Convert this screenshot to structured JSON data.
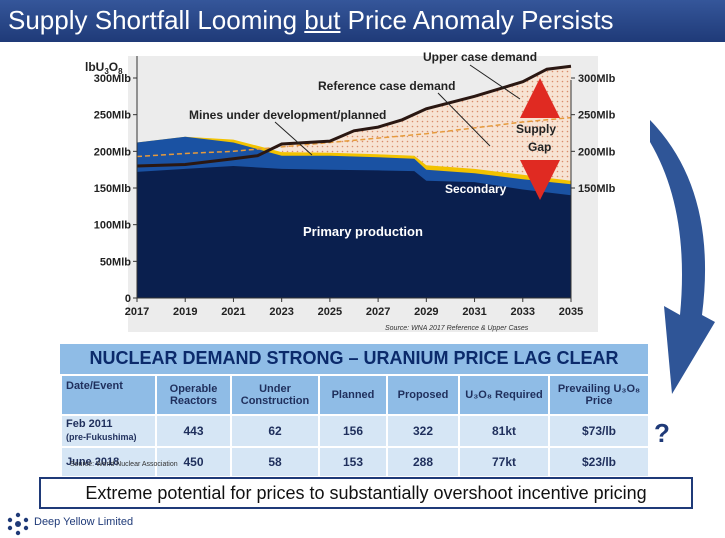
{
  "title": {
    "before": "Supply Shortfall Looming ",
    "underlined": "but",
    "after": " Price Anomaly Persists"
  },
  "chart_data": {
    "type": "area",
    "ylabel_parts": [
      "lbU",
      "3",
      "O",
      "8"
    ],
    "x": [
      2017,
      2019,
      2021,
      2023,
      2025,
      2027,
      2029,
      2031,
      2033,
      2035
    ],
    "x_ticks": [
      "2017",
      "2019",
      "2021",
      "2023",
      "2025",
      "2027",
      "2029",
      "2031",
      "2033",
      "2035"
    ],
    "xlim": [
      2017,
      2035
    ],
    "ylim": [
      0,
      330
    ],
    "y_ticks": [
      0,
      50,
      100,
      150,
      200,
      250,
      300
    ],
    "y_tick_labels": [
      "0",
      "50Mlb",
      "100Mlb",
      "150Mlb",
      "200Mlb",
      "250Mlb",
      "300Mlb"
    ],
    "y_tick_labels_right": [
      "150Mlb",
      "200Mlb",
      "250Mlb",
      "300Mlb"
    ],
    "y_ticks_right": [
      150,
      200,
      250,
      300
    ],
    "series": [
      {
        "name": "Primary production",
        "points": [
          [
            2017,
            172
          ],
          [
            2019,
            176
          ],
          [
            2021,
            180
          ],
          [
            2023,
            176
          ],
          [
            2025,
            175
          ],
          [
            2027,
            174
          ],
          [
            2028.5,
            173
          ],
          [
            2029,
            160
          ],
          [
            2031,
            158
          ],
          [
            2033,
            148
          ],
          [
            2035,
            140
          ]
        ],
        "color": "#0a1f4e"
      },
      {
        "name": "Mines under development/planned",
        "points": [
          [
            2017,
            212
          ],
          [
            2019,
            220
          ],
          [
            2021,
            212
          ],
          [
            2023,
            194
          ],
          [
            2025,
            194
          ],
          [
            2027,
            192
          ],
          [
            2028.5,
            190
          ],
          [
            2029,
            175
          ],
          [
            2031,
            170
          ],
          [
            2033,
            162
          ],
          [
            2035,
            155
          ]
        ],
        "color": "#1a52a3"
      },
      {
        "name": "Secondary",
        "points": [
          [
            2017,
            212
          ],
          [
            2019,
            220
          ],
          [
            2021,
            216
          ],
          [
            2023,
            199
          ],
          [
            2025,
            198
          ],
          [
            2027,
            196
          ],
          [
            2028.5,
            194
          ],
          [
            2029,
            181
          ],
          [
            2031,
            176
          ],
          [
            2033,
            168
          ],
          [
            2035,
            160
          ]
        ],
        "color": "#f2c200"
      },
      {
        "name": "Reference case demand",
        "points": [
          [
            2017,
            193
          ],
          [
            2019,
            197
          ],
          [
            2021,
            200
          ],
          [
            2023,
            206
          ],
          [
            2025,
            212
          ],
          [
            2027,
            218
          ],
          [
            2029,
            224
          ],
          [
            2031,
            232
          ],
          [
            2033,
            240
          ],
          [
            2035,
            246
          ]
        ],
        "color": "#e69a3c"
      },
      {
        "name": "Upper case demand",
        "points": [
          [
            2017,
            180
          ],
          [
            2019,
            182
          ],
          [
            2021,
            190
          ],
          [
            2022,
            194
          ],
          [
            2023,
            210
          ],
          [
            2025,
            214
          ],
          [
            2026,
            228
          ],
          [
            2027,
            233
          ],
          [
            2028,
            243
          ],
          [
            2029,
            258
          ],
          [
            2031,
            275
          ],
          [
            2033,
            295
          ],
          [
            2034,
            312
          ],
          [
            2035,
            316
          ]
        ],
        "color": "#2a1712"
      }
    ],
    "annotations": [
      "Upper case demand",
      "Reference case demand",
      "Mines under development/planned",
      "Primary production",
      "Secondary",
      "Supply",
      "Gap"
    ],
    "source": "Source: WNA 2017 Reference & Upper Cases"
  },
  "table": {
    "heading": "NUCLEAR DEMAND STRONG – URANIUM PRICE LAG CLEAR",
    "columns": [
      "Date/Event",
      "Operable Reactors",
      "Under Construction",
      "Planned",
      "Proposed",
      "U₃O₈ Required",
      "Prevailing U₃O₈ Price"
    ],
    "rows": [
      {
        "event": "Feb 2011",
        "note": "(pre-Fukushima)",
        "operable": "443",
        "under": "62",
        "planned": "156",
        "proposed": "322",
        "required": "81kt",
        "price": "$73/lb"
      },
      {
        "event": "June 2018",
        "note": "",
        "operable": "450",
        "under": "58",
        "planned": "153",
        "proposed": "288",
        "required": "77kt",
        "price": "$23/lb"
      }
    ],
    "source": "Source: World Nuclear Association"
  },
  "question_mark": "?",
  "bottom_text": "Extreme potential for prices to substantially overshoot incentive pricing",
  "logo_text": "Deep Yellow Limited"
}
